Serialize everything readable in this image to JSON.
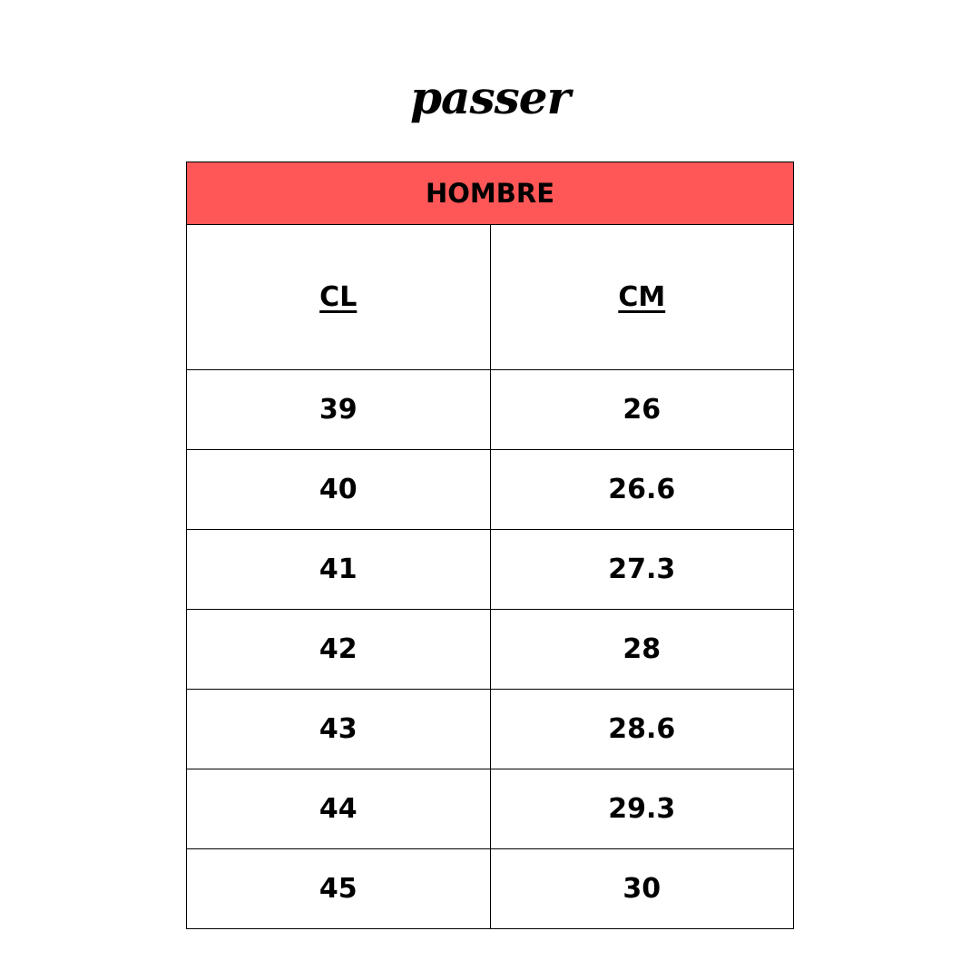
{
  "logo": "passer",
  "table": {
    "title": "HOMBRE",
    "header_color": "#FF5757",
    "columns": [
      "CL",
      "CM"
    ],
    "rows": [
      [
        "39",
        "26"
      ],
      [
        "40",
        "26.6"
      ],
      [
        "41",
        "27.3"
      ],
      [
        "42",
        "28"
      ],
      [
        "43",
        "28.6"
      ],
      [
        "44",
        "29.3"
      ],
      [
        "45",
        "30"
      ]
    ]
  }
}
